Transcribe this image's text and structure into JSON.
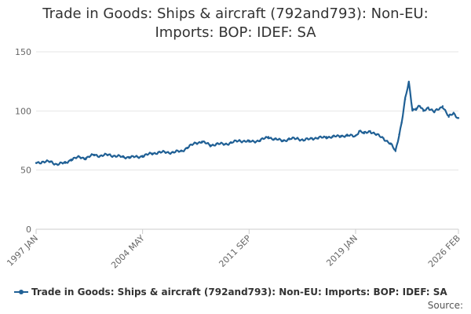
{
  "title_line1": "Trade in Goods: Ships & aircraft (792and793): Non-EU:",
  "title_line2": "Imports: BOP: IDEF: SA",
  "source_label": "Source:",
  "colors": {
    "series": "#206095",
    "grid": "#e6e6e6",
    "axis": "#cccccc",
    "text": "#666666"
  },
  "chart_data": {
    "type": "line",
    "title": "Trade in Goods: Ships & aircraft (792and793): Non-EU: Imports: BOP: IDEF: SA",
    "xlabel": "",
    "ylabel": "",
    "ylim": [
      0,
      150
    ],
    "yticks": [
      0,
      50,
      100,
      150
    ],
    "xtick_labels": [
      "1997 JAN",
      "2004 MAY",
      "2011 SEP",
      "2019 JAN",
      "2026 FEB"
    ],
    "xlim": [
      "1997-01",
      "2026-02"
    ],
    "grid": true,
    "legend_position": "bottom",
    "series": [
      {
        "name": "Trade in Goods: Ships & aircraft (792and793): Non-EU: Imports: BOP: IDEF: SA",
        "x": [
          "1997-01",
          "1997-06",
          "1998-01",
          "1998-06",
          "1999-01",
          "1999-06",
          "2000-01",
          "2000-06",
          "2001-01",
          "2001-06",
          "2002-01",
          "2002-06",
          "2003-01",
          "2003-06",
          "2004-01",
          "2004-05",
          "2005-01",
          "2005-06",
          "2006-01",
          "2006-06",
          "2007-01",
          "2007-06",
          "2008-01",
          "2008-06",
          "2009-01",
          "2009-06",
          "2010-01",
          "2010-06",
          "2011-01",
          "2011-09",
          "2012-06",
          "2013-01",
          "2013-06",
          "2014-01",
          "2014-06",
          "2015-01",
          "2015-06",
          "2016-01",
          "2016-06",
          "2017-01",
          "2017-06",
          "2018-01",
          "2018-06",
          "2019-01",
          "2019-04",
          "2019-08",
          "2020-01",
          "2020-06",
          "2020-12",
          "2021-06",
          "2021-10",
          "2022-01",
          "2022-03",
          "2022-06",
          "2022-09",
          "2022-12",
          "2023-03",
          "2023-06",
          "2023-09",
          "2024-01",
          "2024-06",
          "2025-01",
          "2025-06",
          "2025-10",
          "2026-02"
        ],
        "y": [
          56,
          57,
          57,
          55,
          56,
          59,
          61,
          60,
          63,
          62,
          63,
          62,
          61,
          61,
          61,
          62,
          64,
          65,
          65,
          65,
          66,
          69,
          73,
          74,
          71,
          72,
          72,
          73,
          75,
          74,
          75,
          78,
          76,
          75,
          76,
          77,
          75,
          77,
          77,
          78,
          78,
          79,
          79,
          79,
          83,
          81,
          83,
          80,
          77,
          72,
          66,
          80,
          90,
          110,
          124,
          101,
          102,
          104,
          100,
          103,
          99,
          104,
          95,
          98,
          94
        ]
      }
    ]
  }
}
